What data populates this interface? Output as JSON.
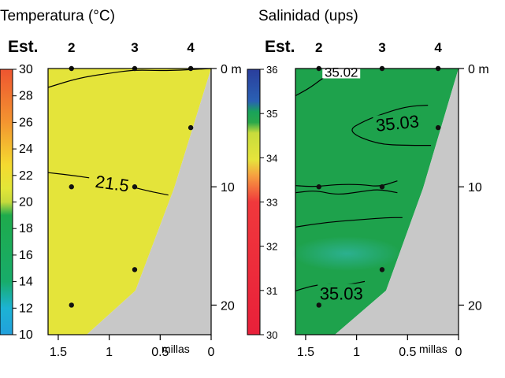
{
  "chart_data": [
    {
      "type": "contour",
      "title": "Temperatura (°C)",
      "station_prefix": "Est.",
      "stations": [
        {
          "label": "2",
          "distance": 1.37
        },
        {
          "label": "3",
          "distance": 0.75
        },
        {
          "label": "4",
          "distance": 0.2
        }
      ],
      "samples": [
        {
          "distance": 1.37,
          "depth": 0
        },
        {
          "distance": 0.75,
          "depth": 0
        },
        {
          "distance": 0.2,
          "depth": 0
        },
        {
          "distance": 0.2,
          "depth": 5
        },
        {
          "distance": 1.37,
          "depth": 10
        },
        {
          "distance": 0.75,
          "depth": 10
        },
        {
          "distance": 0.75,
          "depth": 17
        },
        {
          "distance": 1.37,
          "depth": 20
        }
      ],
      "xlim": [
        1.6,
        0
      ],
      "ylim": [
        0,
        22.5
      ],
      "xticks": [
        {
          "v": 1.5,
          "label": "1.5"
        },
        {
          "v": 1,
          "label": "1"
        },
        {
          "v": 0.5,
          "label": "0.5"
        },
        {
          "v": 0,
          "label": "0"
        }
      ],
      "xlabel": "millas",
      "yticks": [
        {
          "v": 0,
          "label": "0 m"
        },
        {
          "v": 10,
          "label": "10"
        },
        {
          "v": 20,
          "label": "20"
        }
      ],
      "contours": [
        {
          "value": 21.5,
          "label": "21.5",
          "points": [
            [
              1.6,
              8.8
            ],
            [
              1.3,
              9.1
            ],
            [
              1.0,
              9.5
            ],
            [
              0.65,
              10.3
            ],
            [
              0.42,
              10.7
            ]
          ]
        },
        {
          "value": 22,
          "label": "",
          "points": [
            [
              1.6,
              1.6
            ],
            [
              1.3,
              0.8
            ],
            [
              1.0,
              0.4
            ],
            [
              0.75,
              0.1
            ],
            [
              0.45,
              0.2
            ],
            [
              0,
              0
            ]
          ]
        }
      ],
      "contour_label_positions": [
        {
          "value": 21.5,
          "distance": 0.97,
          "depth": 9.7
        }
      ],
      "colorbar": {
        "min": 10,
        "max": 30,
        "ticks": [
          "30",
          "28",
          "26",
          "24",
          "22",
          "20",
          "18",
          "16",
          "14",
          "12",
          "10"
        ]
      }
    },
    {
      "type": "contour",
      "title": "Salinidad  (ups)",
      "station_prefix": "Est.",
      "stations": [
        {
          "label": "2",
          "distance": 1.37
        },
        {
          "label": "3",
          "distance": 0.75
        },
        {
          "label": "4",
          "distance": 0.2
        }
      ],
      "samples": [
        {
          "distance": 1.37,
          "depth": 0
        },
        {
          "distance": 0.75,
          "depth": 0
        },
        {
          "distance": 0.2,
          "depth": 0
        },
        {
          "distance": 0.2,
          "depth": 5
        },
        {
          "distance": 1.37,
          "depth": 10
        },
        {
          "distance": 0.75,
          "depth": 10
        },
        {
          "distance": 0.75,
          "depth": 17
        },
        {
          "distance": 1.37,
          "depth": 20
        }
      ],
      "xlim": [
        1.6,
        0
      ],
      "ylim": [
        0,
        22.5
      ],
      "xticks": [
        {
          "v": 1.5,
          "label": "1.5"
        },
        {
          "v": 1,
          "label": "1"
        },
        {
          "v": 0.5,
          "label": "0.5"
        },
        {
          "v": 0,
          "label": "0"
        }
      ],
      "xlabel": "millas",
      "yticks": [
        {
          "v": 0,
          "label": "0 m"
        },
        {
          "v": 10,
          "label": "10"
        },
        {
          "v": 20,
          "label": "20"
        }
      ],
      "contours": [
        {
          "value": 35.02,
          "label": "35.02",
          "points": [
            [
              1.6,
              2.3
            ],
            [
              1.45,
              1.6
            ],
            [
              1.3,
              0.6
            ],
            [
              1.15,
              0.1
            ]
          ]
        },
        {
          "value": 35.03,
          "label": "35.03",
          "points": [
            [
              0.3,
              3.1
            ],
            [
              0.5,
              3.2
            ],
            [
              0.7,
              3.7
            ],
            [
              0.92,
              4.4
            ],
            [
              1.1,
              5.3
            ],
            [
              0.8,
              6.4
            ],
            [
              0.5,
              6.5
            ],
            [
              0.27,
              6.5
            ]
          ]
        },
        {
          "value": 35.03,
          "label": "",
          "points": [
            [
              1.6,
              9.9
            ],
            [
              1.4,
              10.0
            ],
            [
              1.2,
              9.8
            ],
            [
              0.95,
              9.8
            ],
            [
              0.78,
              10.0
            ],
            [
              0.6,
              9.5
            ]
          ]
        },
        {
          "value": 35.03,
          "label": "",
          "points": [
            [
              0.6,
              10.5
            ],
            [
              0.78,
              10.2
            ],
            [
              0.95,
              10.4
            ],
            [
              1.2,
              10.7
            ],
            [
              1.4,
              10.3
            ],
            [
              1.6,
              10.5
            ]
          ]
        },
        {
          "value": 35.03,
          "label": "",
          "points": [
            [
              1.6,
              13.4
            ],
            [
              1.3,
              13.0
            ],
            [
              1.0,
              12.8
            ],
            [
              0.7,
              12.6
            ],
            [
              0.55,
              12.6
            ]
          ]
        },
        {
          "value": 35.03,
          "label": "35.03",
          "points": [
            [
              1.6,
              18.8
            ],
            [
              1.45,
              18.4
            ],
            [
              1.3,
              18.2
            ],
            [
              1.1,
              18.3
            ],
            [
              0.92,
              18.0
            ]
          ]
        }
      ],
      "contour_label_positions": [
        {
          "value": 35.02,
          "distance": 1.15,
          "depth": 0.3
        },
        {
          "value": 35.03,
          "distance": 0.6,
          "depth": 4.6
        },
        {
          "value": 35.03,
          "distance": 1.15,
          "depth": 19.0
        }
      ],
      "colorbar": {
        "min": 30,
        "max": 36,
        "ticks": [
          "36",
          "35",
          "34",
          "33",
          "32",
          "31",
          "30"
        ]
      }
    }
  ]
}
